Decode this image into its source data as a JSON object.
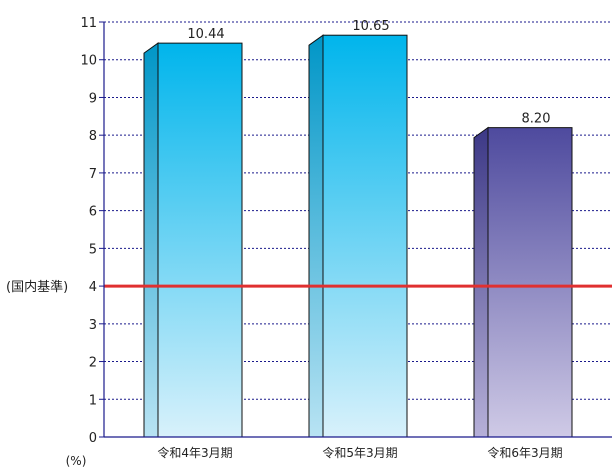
{
  "chart_data": {
    "type": "bar",
    "categories": [
      "令和4年3月期",
      "令和5年3月期",
      "令和6年3月期"
    ],
    "values": [
      10.44,
      10.65,
      8.2
    ],
    "value_labels": [
      "10.44",
      "10.65",
      "8.20"
    ],
    "ylim": [
      0,
      11
    ],
    "yticks": [
      "0",
      "1",
      "2",
      "3",
      "4",
      "5",
      "6",
      "7",
      "8",
      "9",
      "10",
      "11"
    ],
    "y_unit": "(%)",
    "grid": true,
    "reference_line": {
      "value": 4,
      "label": "(国内基準)",
      "color": "#e03030"
    },
    "colors": {
      "bar_light_top": "#00b5ec",
      "bar_light_bottom": "#d8f1fb",
      "bar_dark_top": "#4e4a9e",
      "bar_dark_bottom": "#cfcae6",
      "grid": "#1a1a8c",
      "axis": "#1a1a8c"
    },
    "bar_styles": [
      "light",
      "light",
      "dark"
    ]
  }
}
